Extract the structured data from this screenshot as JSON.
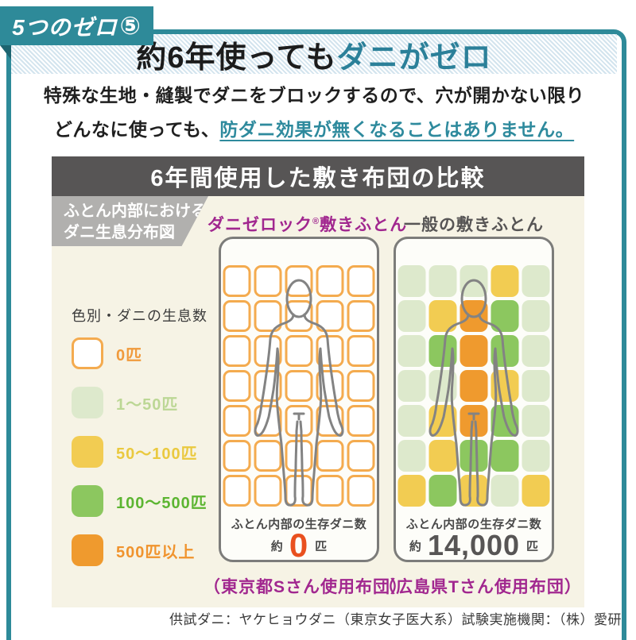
{
  "badge": {
    "label": "5つのゼロ",
    "number": "⑤"
  },
  "title": {
    "black": "約6年使っても",
    "accent": "ダニがゼロ"
  },
  "intro": {
    "line1": "特殊な生地・縫製でダニをブロックするので、穴が開かない限り",
    "line2_plain": "どんなに使っても、",
    "line2_link": "防ダニ効果が無くなることはありません。"
  },
  "comparison": {
    "title": "6年間使用した敷き布団の比較",
    "ribbon_line1": "ふとん内部における",
    "ribbon_line2": "ダニ生息分布図",
    "legend": {
      "title": "色別・ダニの生息数",
      "items": [
        {
          "label": "0匹",
          "swatch": "outline",
          "text_key": "zero"
        },
        {
          "label": "1〜50匹",
          "swatch": "a",
          "text_key": "a"
        },
        {
          "label": "50〜100匹",
          "swatch": "b",
          "text_key": "b"
        },
        {
          "label": "100〜500匹",
          "swatch": "c",
          "text_key": "c"
        },
        {
          "label": "500匹以上",
          "swatch": "d",
          "text_key": "d"
        }
      ]
    },
    "futons": [
      {
        "title_main": "ダニゼロック",
        "title_reg": "®",
        "title_rest": "敷きふとん",
        "count_label": "ふとん内部の生存ダニ数",
        "count_prefix": "約",
        "count_value": "0",
        "count_unit": "匹",
        "caption": "（東京都Sさん使用布団）",
        "grid": [
          "zzzzz",
          "zzzzz",
          "zzzzz",
          "zzzzz",
          "zzzzz",
          "zzzzz",
          "zzzzz"
        ]
      },
      {
        "title_main": "一般の敷きふとん",
        "title_reg": "",
        "title_rest": "",
        "count_label": "ふとん内部の生存ダニ数",
        "count_prefix": "約",
        "count_value": "14,000",
        "count_unit": "匹",
        "caption": "（広島県Tさん使用布団）",
        "grid": [
          "aaaba",
          "abdca",
          "acdca",
          "aadba",
          "abdca",
          "abcca",
          "bcbab"
        ]
      }
    ]
  },
  "footnote": "供試ダニ：ヤケヒョウダニ（東京女子医大系）試験実施機関：（株）愛研",
  "colors": {
    "accent_teal": "#2e8a99",
    "accent_teal_dark": "#1d6470",
    "title_accent": "#2b8099",
    "magenta": "#a1278f",
    "bar_gray": "#575555",
    "cream_bg": "#f6f3e5",
    "ribbon_gray": "#b1b0ae",
    "zero_red": "#e9501f",
    "cell_outline_border": "#f4ab4f",
    "body_outline_gray": "#838383",
    "cells": {
      "a": "#dde9cc",
      "b": "#f2cc52",
      "c": "#8cc75f",
      "d": "#ef9a2e"
    },
    "legend_text": {
      "zero": "#f09a3c",
      "a": "#bcd795",
      "b": "#eac93f",
      "c": "#5cb531",
      "d": "#f0932d"
    }
  }
}
